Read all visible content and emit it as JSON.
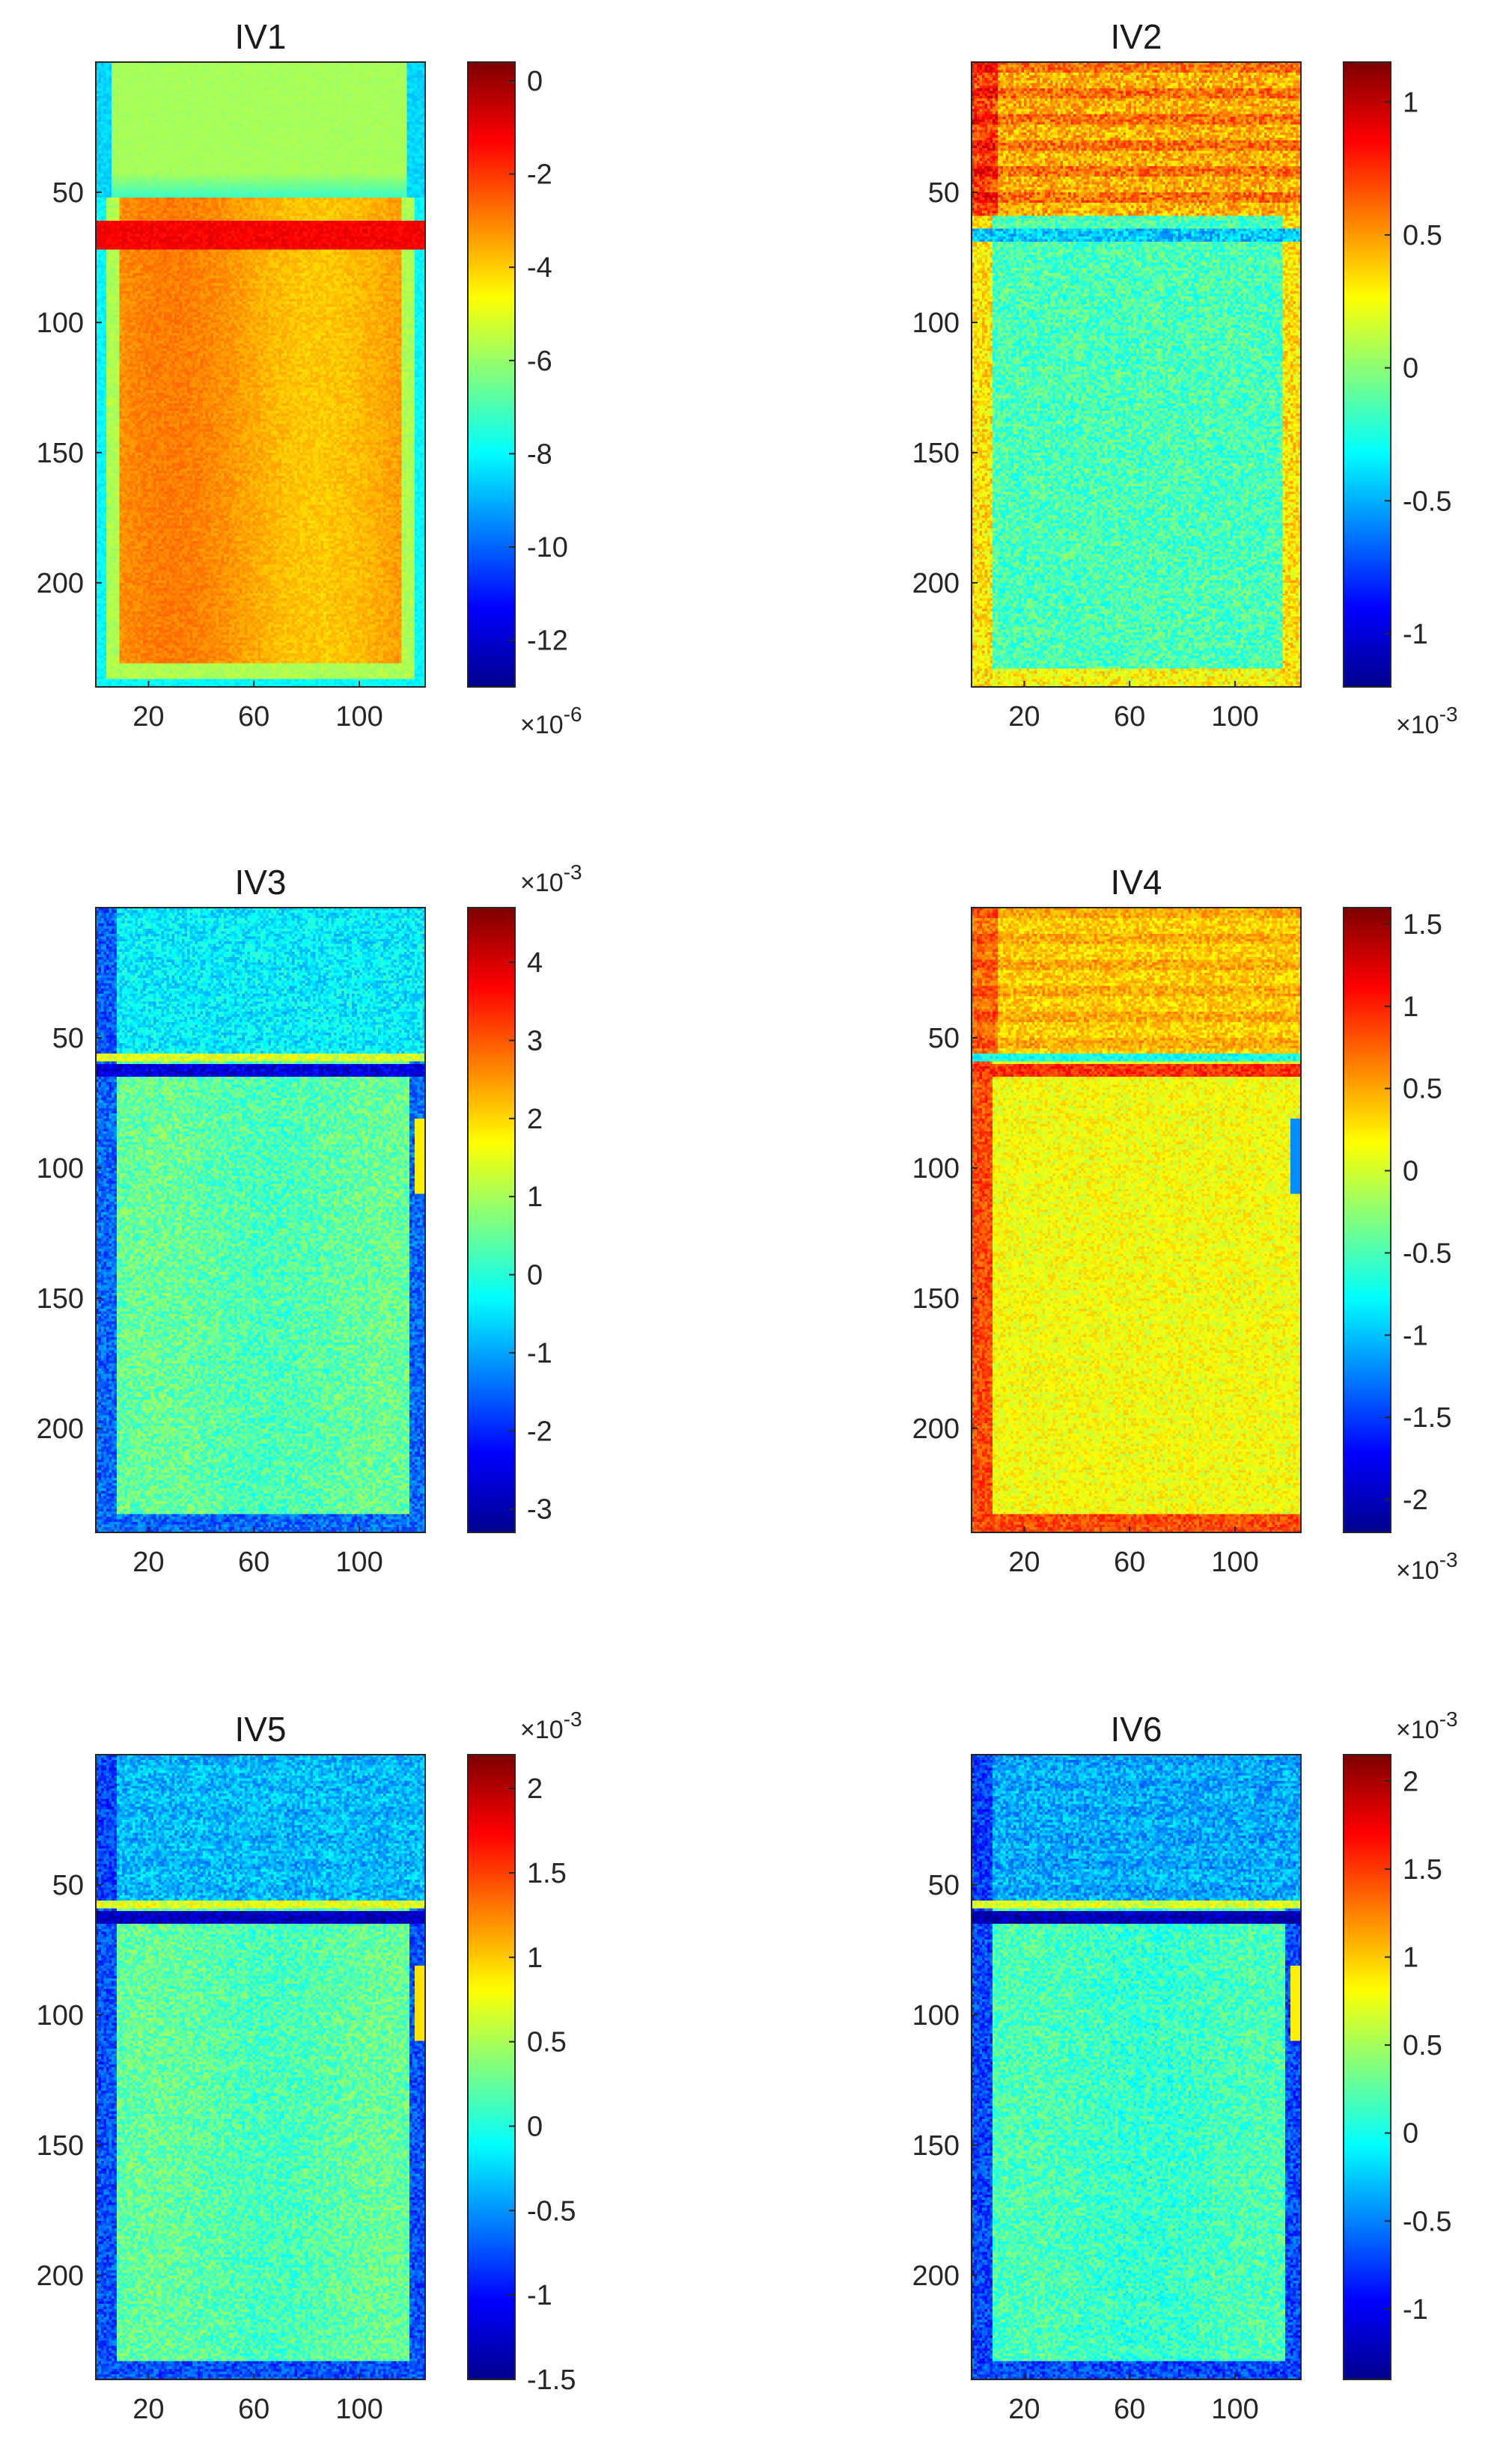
{
  "figure": {
    "colormap": "jet",
    "colormap_stops": [
      "#00008f",
      "#0000ff",
      "#00ffff",
      "#ffff00",
      "#ff0000",
      "#800000"
    ]
  },
  "chart_data": [
    {
      "type": "heatmap",
      "title": "IV1",
      "xlabel": "",
      "ylabel": "",
      "xlim": [
        0,
        125
      ],
      "ylim": [
        240,
        0
      ],
      "x_ticks": [
        20,
        60,
        100
      ],
      "x_tick_labels": [
        "20",
        "60",
        "100"
      ],
      "y_ticks": [
        50,
        100,
        150,
        200
      ],
      "y_tick_labels": [
        "50",
        "100",
        "150",
        "200"
      ],
      "colorbar": {
        "clim": [
          -13,
          0.4
        ],
        "ticks": [
          0,
          -2,
          -4,
          -6,
          -8,
          -10,
          -12
        ],
        "tick_labels": [
          "0",
          "-2",
          "-4",
          "-6",
          "-8",
          "-10",
          "-12"
        ],
        "exponent_label": "×10^-6",
        "exponent_position": "bottom"
      },
      "field": {
        "pattern": "iv1",
        "base": -3.4,
        "top_band": -5.8,
        "boundary_row": 60,
        "boundary_value": -1.2,
        "border": -8.0,
        "noise": 0.35
      }
    },
    {
      "type": "heatmap",
      "title": "IV2",
      "xlabel": "",
      "ylabel": "",
      "xlim": [
        0,
        125
      ],
      "ylim": [
        240,
        0
      ],
      "x_ticks": [
        20,
        60,
        100
      ],
      "x_tick_labels": [
        "20",
        "60",
        "100"
      ],
      "y_ticks": [
        50,
        100,
        150,
        200
      ],
      "y_tick_labels": [
        "50",
        "100",
        "150",
        "200"
      ],
      "colorbar": {
        "clim": [
          -1.2,
          1.15
        ],
        "ticks": [
          1,
          0.5,
          0,
          -0.5,
          -1
        ],
        "tick_labels": [
          "1",
          "0.5",
          "0",
          "-0.5",
          "-1"
        ],
        "exponent_label": "×10^-3",
        "exponent_position": "bottom"
      },
      "field": {
        "pattern": "iv2",
        "base": -0.15,
        "top_band": 0.45,
        "boundary_row": 62,
        "boundary_value": -0.45,
        "border": 0.55,
        "noise": 0.18
      }
    },
    {
      "type": "heatmap",
      "title": "IV3",
      "xlabel": "",
      "ylabel": "",
      "xlim": [
        0,
        125
      ],
      "ylim": [
        240,
        0
      ],
      "x_ticks": [
        20,
        60,
        100
      ],
      "x_tick_labels": [
        "20",
        "60",
        "100"
      ],
      "y_ticks": [
        50,
        100,
        150,
        200
      ],
      "y_tick_labels": [
        "50",
        "100",
        "150",
        "200"
      ],
      "colorbar": {
        "clim": [
          -3.3,
          4.7
        ],
        "ticks": [
          4,
          3,
          2,
          1,
          0,
          -1,
          -2,
          -3
        ],
        "tick_labels": [
          "4",
          "3",
          "2",
          "1",
          "0",
          "-1",
          "-2",
          "-3"
        ],
        "exponent_label": "×10^-3",
        "exponent_position": "top"
      },
      "field": {
        "pattern": "iv3",
        "base": 0.4,
        "top_band": -0.4,
        "boundary_row": 60,
        "boundary_value": -2.6,
        "border": -2.0,
        "noise": 0.55
      }
    },
    {
      "type": "heatmap",
      "title": "IV4",
      "xlabel": "",
      "ylabel": "",
      "xlim": [
        0,
        125
      ],
      "ylim": [
        240,
        0
      ],
      "x_ticks": [
        20,
        60,
        100
      ],
      "x_tick_labels": [
        "20",
        "60",
        "100"
      ],
      "y_ticks": [
        50,
        100,
        150,
        200
      ],
      "y_tick_labels": [
        "50",
        "100",
        "150",
        "200"
      ],
      "colorbar": {
        "clim": [
          -2.2,
          1.6
        ],
        "ticks": [
          1.5,
          1,
          0.5,
          0,
          -0.5,
          -1,
          -1.5,
          -2
        ],
        "tick_labels": [
          "1.5",
          "1",
          "0.5",
          "0",
          "-0.5",
          "-1",
          "-1.5",
          "-2"
        ],
        "exponent_label": "×10^-3",
        "exponent_position": "bottom"
      },
      "field": {
        "pattern": "iv4",
        "base": 0.15,
        "top_band": 0.35,
        "boundary_row": 60,
        "boundary_value": 0.95,
        "border": 0.85,
        "noise": 0.22
      }
    },
    {
      "type": "heatmap",
      "title": "IV5",
      "xlabel": "",
      "ylabel": "",
      "xlim": [
        0,
        125
      ],
      "ylim": [
        240,
        0
      ],
      "x_ticks": [
        20,
        60,
        100
      ],
      "x_tick_labels": [
        "20",
        "60",
        "100"
      ],
      "y_ticks": [
        50,
        100,
        150,
        200
      ],
      "y_tick_labels": [
        "50",
        "100",
        "150",
        "200"
      ],
      "colorbar": {
        "clim": [
          -1.5,
          2.2
        ],
        "ticks": [
          2,
          1.5,
          1,
          0.5,
          0,
          -0.5,
          -1,
          -1.5
        ],
        "tick_labels": [
          "2",
          "1.5",
          "1",
          "0.5",
          "0",
          "-0.5",
          "-1",
          "-1.5"
        ],
        "exponent_label": "×10^-3",
        "exponent_position": "top"
      },
      "field": {
        "pattern": "iv3",
        "base": 0.2,
        "top_band": -0.35,
        "boundary_row": 60,
        "boundary_value": -1.3,
        "border": -1.0,
        "noise": 0.25
      }
    },
    {
      "type": "heatmap",
      "title": "IV6",
      "xlabel": "",
      "ylabel": "",
      "xlim": [
        0,
        125
      ],
      "ylim": [
        240,
        0
      ],
      "x_ticks": [
        20,
        60,
        100
      ],
      "x_tick_labels": [
        "20",
        "60",
        "100"
      ],
      "y_ticks": [
        50,
        100,
        150,
        200
      ],
      "y_tick_labels": [
        "50",
        "100",
        "150",
        "200"
      ],
      "colorbar": {
        "clim": [
          -1.4,
          2.15
        ],
        "ticks": [
          2,
          1.5,
          1,
          0.5,
          0,
          -0.5,
          -1
        ],
        "tick_labels": [
          "2",
          "1.5",
          "1",
          "0.5",
          "0",
          "-0.5",
          "-1"
        ],
        "exponent_label": "×10^-3",
        "exponent_position": "top"
      },
      "field": {
        "pattern": "iv3",
        "base": 0.15,
        "top_band": -0.35,
        "boundary_row": 60,
        "boundary_value": -1.25,
        "border": -0.95,
        "noise": 0.25
      }
    }
  ]
}
